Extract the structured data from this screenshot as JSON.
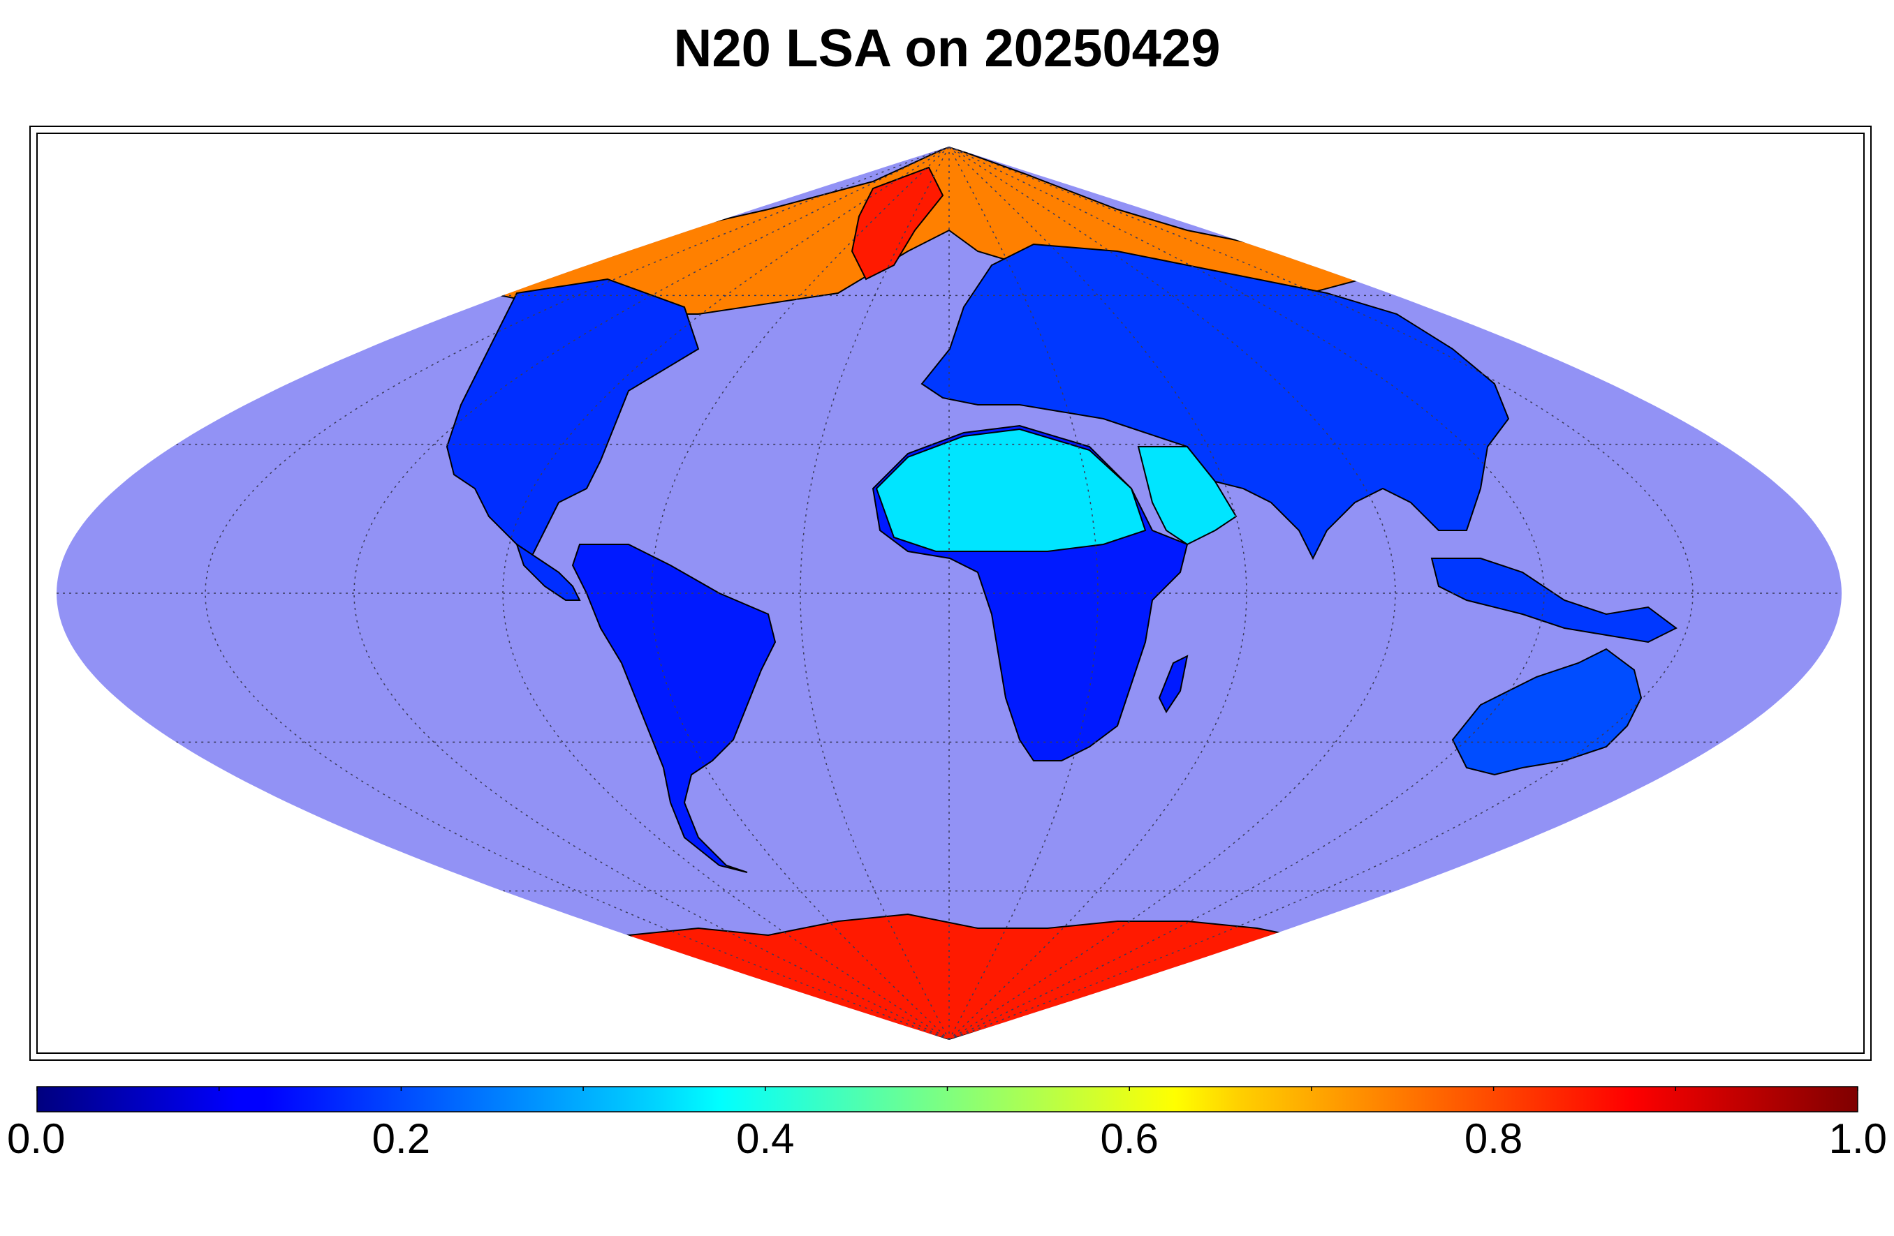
{
  "title": "N20 LSA on 20250429",
  "map": {
    "projection": "sinusoidal",
    "graticule": "dotted",
    "ocean_color": "#9292f5",
    "coastline_color": "#000000",
    "land_regions": [
      {
        "name": "north-america",
        "value": 0.17
      },
      {
        "name": "greenland",
        "value": 0.85
      },
      {
        "name": "south-america",
        "value": 0.15
      },
      {
        "name": "europe-asia",
        "value": 0.18
      },
      {
        "name": "africa-sahara",
        "value": 0.35
      },
      {
        "name": "africa-south",
        "value": 0.15
      },
      {
        "name": "arabia",
        "value": 0.35
      },
      {
        "name": "australia",
        "value": 0.2
      },
      {
        "name": "antarctica",
        "value": 0.85
      },
      {
        "name": "arctic-snow",
        "value": 0.75
      }
    ]
  },
  "colorbar": {
    "colormap": "jet",
    "min": 0.0,
    "max": 1.0,
    "tick_labels": [
      "0.0",
      "0.2",
      "0.4",
      "0.6",
      "0.8",
      "1.0"
    ],
    "tick_values": [
      0.0,
      0.2,
      0.4,
      0.6,
      0.8,
      1.0
    ],
    "minor_tick_values": [
      0.1,
      0.3,
      0.5,
      0.7,
      0.9
    ]
  }
}
